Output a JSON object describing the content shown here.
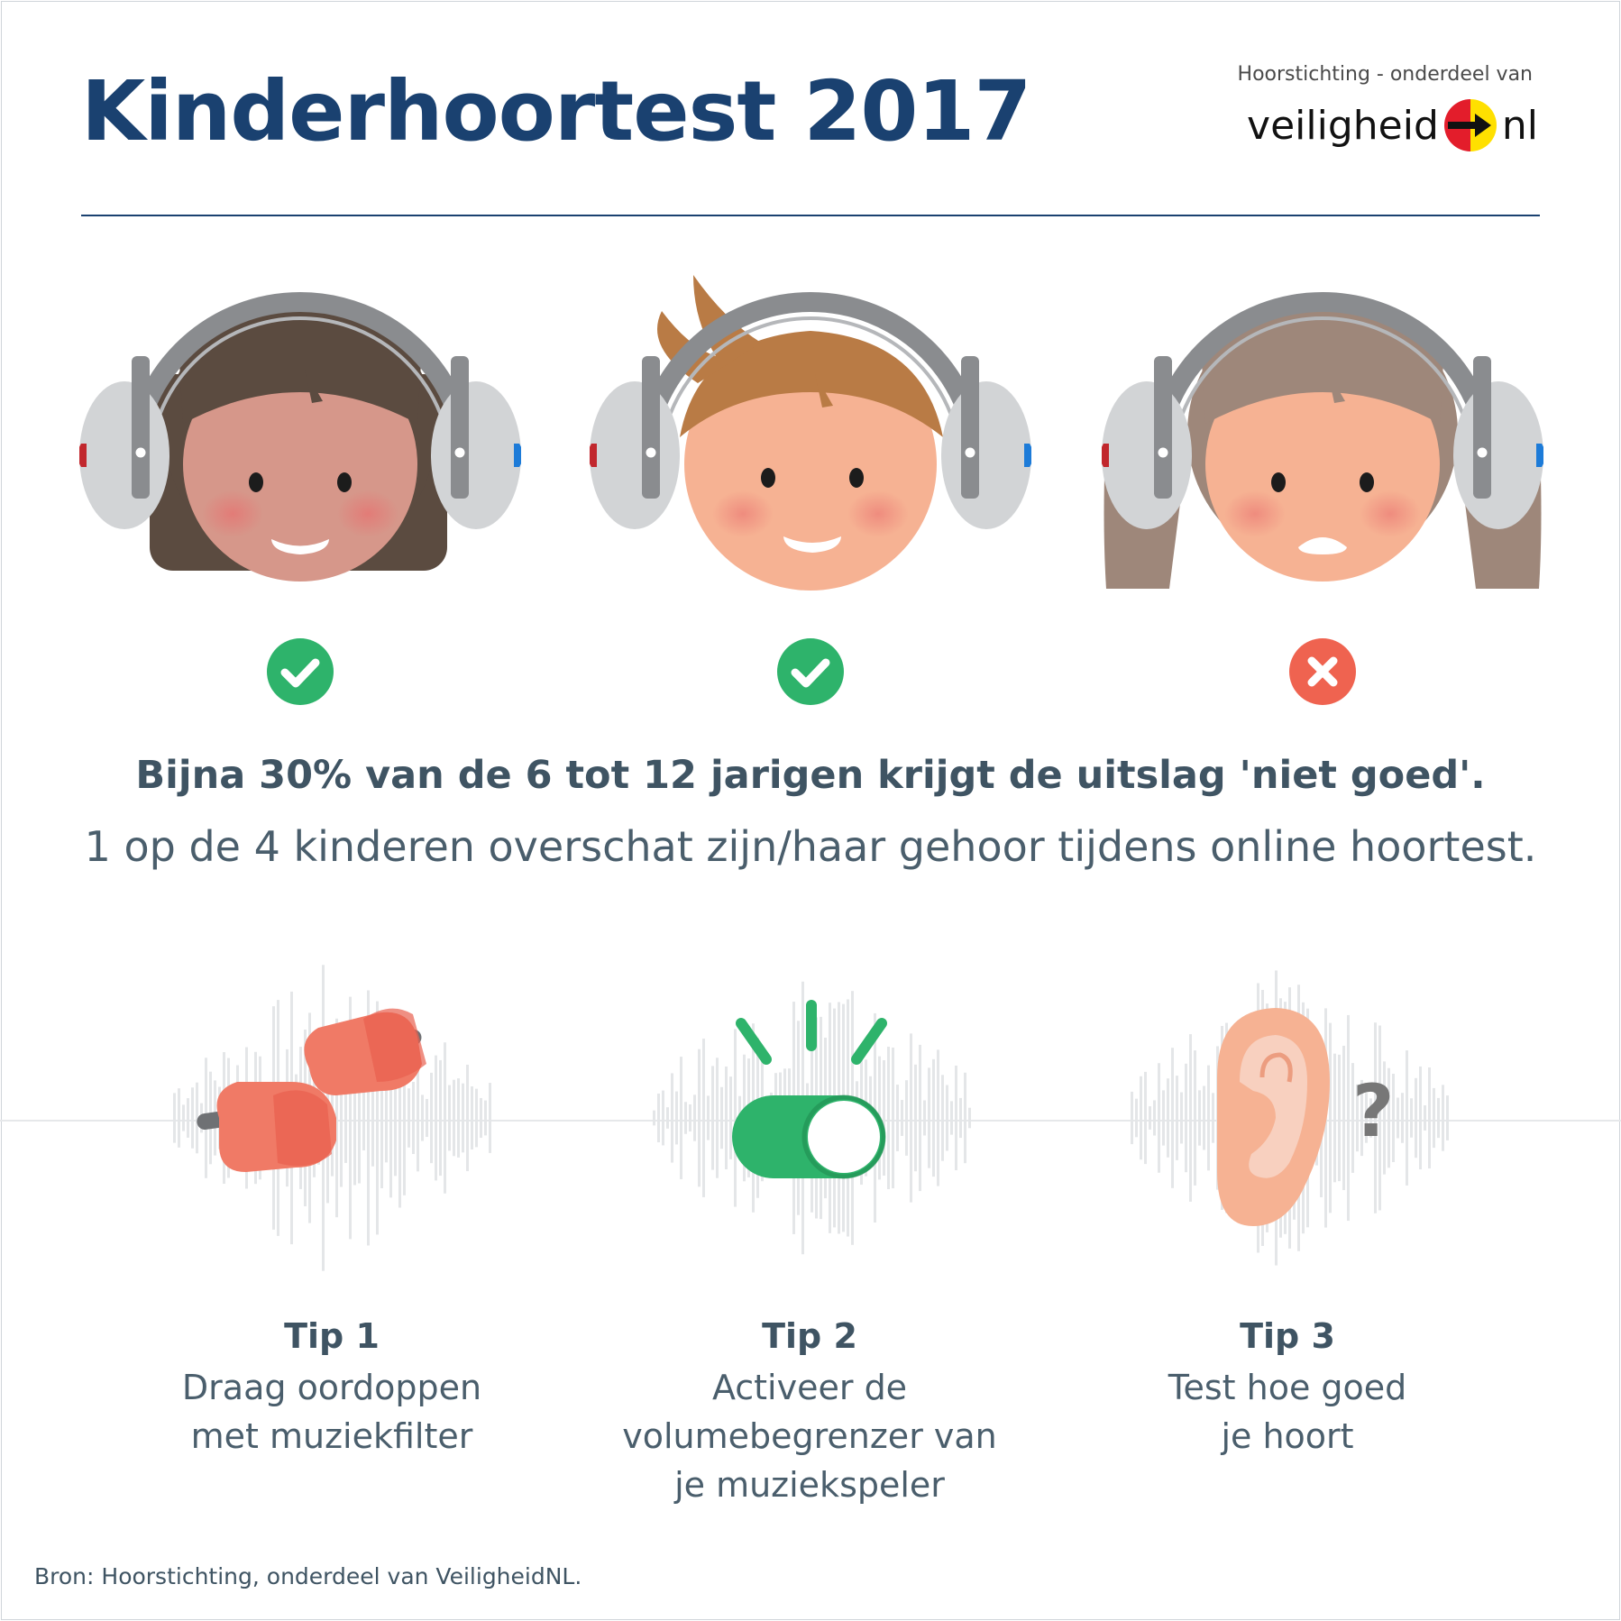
{
  "header": {
    "title": "Kinderhoortest 2017",
    "brand_sub": "Hoorstichting - onderdeel van",
    "brand_left": "veiligheid",
    "brand_right": "nl"
  },
  "children": [
    {
      "result": "goed",
      "icon": "check-icon"
    },
    {
      "result": "goed",
      "icon": "check-icon"
    },
    {
      "result": "niet goed",
      "icon": "cross-icon"
    }
  ],
  "stats": {
    "line1": "Bijna 30% van de 6 tot 12 jarigen krijgt de uitslag 'niet goed'.",
    "line2": "1 op de 4 kinderen overschat zijn/haar gehoor tijdens online hoortest."
  },
  "tips": [
    {
      "heading": "Tip 1",
      "lines": [
        "Draag oordoppen",
        "met muziekfilter"
      ],
      "icon": "earplugs-icon"
    },
    {
      "heading": "Tip 2",
      "lines": [
        "Activeer de",
        "volumebegrenzer van",
        "je muziekspeler"
      ],
      "icon": "volume-toggle-icon"
    },
    {
      "heading": "Tip 3",
      "lines": [
        "Test hoe goed",
        "je hoort"
      ],
      "icon": "ear-question-icon"
    }
  ],
  "source": "Bron: Hoorstichting, onderdeel van VeiligheidNL.",
  "colors": {
    "title": "#1a4170",
    "check": "#2eb36b",
    "cross": "#ef6350",
    "headphones": "#8a8c8f",
    "toggle": "#2eb36b",
    "earplug": "#f07a66"
  }
}
